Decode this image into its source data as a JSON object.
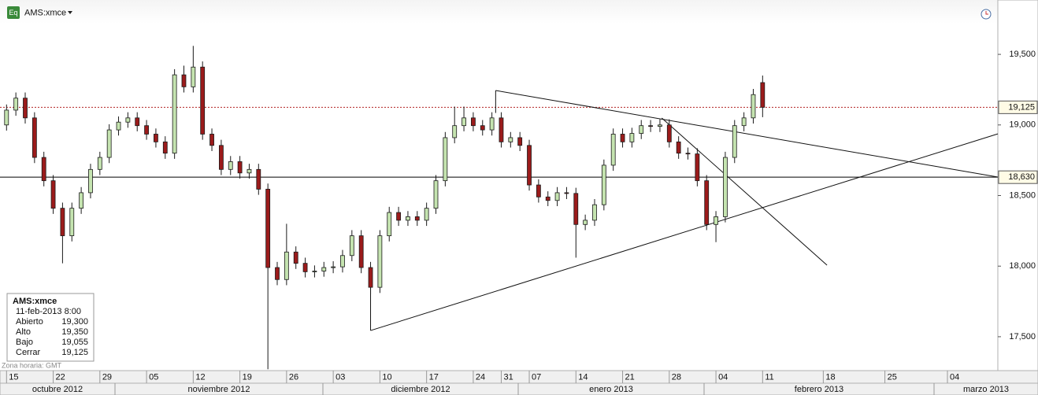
{
  "chart_data": {
    "type": "candlestick",
    "title": "AMS:xmce",
    "icon_label": "Eq",
    "timezone_note": "Zona horaria: GMT",
    "up_color": "#c5e4b0",
    "down_color": "#9b1b1b",
    "outline_color": "#1a1a1a",
    "x": [
      0,
      1,
      2,
      3,
      4,
      5,
      6,
      7,
      8,
      9,
      10,
      11,
      12,
      13,
      14,
      15,
      16,
      17,
      18,
      19,
      20,
      21,
      22,
      23,
      24,
      25,
      26,
      27,
      28,
      29,
      30,
      31,
      32,
      33,
      34,
      35,
      36,
      37,
      38,
      39,
      40,
      41,
      42,
      43,
      44,
      45,
      46,
      47,
      48,
      49,
      50,
      51,
      52,
      53,
      54,
      55,
      56,
      57,
      58,
      59,
      60,
      61,
      62,
      63,
      64,
      65,
      66,
      67,
      68,
      69,
      70,
      71,
      72,
      73,
      74,
      75,
      76,
      77,
      78,
      79,
      80,
      81
    ],
    "open": [
      19000,
      19105,
      19190,
      19050,
      18770,
      18605,
      18410,
      18215,
      18410,
      18520,
      18685,
      18770,
      18965,
      19020,
      19050,
      18995,
      18935,
      18880,
      18800,
      19355,
      19270,
      19410,
      18935,
      18855,
      18685,
      18740,
      18660,
      18685,
      18545,
      17990,
      17905,
      18100,
      18020,
      17960,
      17965,
      17990,
      17995,
      18075,
      18215,
      17990,
      17850,
      18215,
      18380,
      18325,
      18350,
      18325,
      18410,
      18605,
      18910,
      18995,
      19050,
      18995,
      18965,
      19050,
      18880,
      18910,
      18855,
      18575,
      18490,
      18465,
      18520,
      18515,
      18295,
      18325,
      18435,
      18715,
      18935,
      18880,
      18940,
      18995,
      18990,
      19000,
      18880,
      18800,
      18795,
      18605,
      18295,
      18350,
      18770,
      18995,
      19050,
      19300
    ],
    "high": [
      19145,
      19230,
      19230,
      19090,
      18810,
      18645,
      18450,
      18450,
      18560,
      18725,
      18810,
      19005,
      19060,
      19090,
      19090,
      19035,
      18975,
      18920,
      19395,
      19420,
      19560,
      19450,
      18975,
      18895,
      18780,
      18780,
      18725,
      18725,
      18585,
      18030,
      18300,
      18140,
      18060,
      18005,
      18030,
      18035,
      18115,
      18255,
      18255,
      18030,
      18255,
      18420,
      18420,
      18390,
      18390,
      18450,
      18645,
      18950,
      19130,
      19130,
      19090,
      19035,
      19090,
      19090,
      18950,
      18950,
      18895,
      18615,
      18530,
      18560,
      18560,
      18555,
      18365,
      18475,
      18755,
      18975,
      18975,
      18980,
      19035,
      19035,
      19040,
      19040,
      18920,
      18840,
      18835,
      18645,
      18390,
      18810,
      19035,
      19090,
      19255,
      19350
    ],
    "low": [
      18960,
      19065,
      19010,
      18730,
      18565,
      18370,
      18020,
      18175,
      18370,
      18480,
      18645,
      18730,
      18925,
      18980,
      18955,
      18895,
      18840,
      18760,
      18760,
      19230,
      19230,
      18895,
      18815,
      18645,
      18645,
      18620,
      18620,
      18505,
      17270,
      17865,
      17865,
      17980,
      17920,
      17920,
      17925,
      17950,
      17955,
      18035,
      17950,
      17800,
      17810,
      18175,
      18285,
      18285,
      18285,
      18285,
      18370,
      18565,
      18870,
      18955,
      18955,
      18925,
      18925,
      18840,
      18840,
      18815,
      18535,
      18450,
      18425,
      18425,
      18475,
      18060,
      18255,
      18285,
      18395,
      18675,
      18840,
      18840,
      18900,
      18950,
      18950,
      18840,
      18760,
      18755,
      18565,
      18255,
      18170,
      18310,
      18730,
      18955,
      19010,
      19055
    ],
    "close": [
      19105,
      19190,
      19050,
      18770,
      18605,
      18410,
      18215,
      18410,
      18520,
      18685,
      18770,
      18965,
      19020,
      19050,
      18995,
      18935,
      18880,
      18800,
      19355,
      19270,
      19410,
      18935,
      18855,
      18685,
      18740,
      18660,
      18685,
      18545,
      17990,
      17905,
      18100,
      18020,
      17960,
      17965,
      17990,
      17995,
      18075,
      18215,
      17990,
      17850,
      18215,
      18380,
      18325,
      18350,
      18325,
      18410,
      18605,
      18910,
      18995,
      19050,
      18995,
      18965,
      19050,
      18880,
      18910,
      18855,
      18575,
      18490,
      18465,
      18520,
      18515,
      18295,
      18325,
      18435,
      18715,
      18935,
      18880,
      18940,
      18995,
      18990,
      19000,
      18880,
      18800,
      18795,
      18605,
      18295,
      18350,
      18770,
      18995,
      19050,
      19215,
      19125
    ],
    "xlim": [
      -0.7,
      106.2
    ],
    "ylim": [
      17260,
      19885
    ],
    "yticks": [
      {
        "value": 17500,
        "label": "17,500"
      },
      {
        "value": 18000,
        "label": "18,000"
      },
      {
        "value": 18500,
        "label": "18,500"
      },
      {
        "value": 19000,
        "label": "19,000"
      },
      {
        "value": 19500,
        "label": "19,500"
      }
    ],
    "xticks": [
      {
        "value": 0,
        "label": "15"
      },
      {
        "value": 5,
        "label": "22"
      },
      {
        "value": 10,
        "label": "29"
      },
      {
        "value": 15,
        "label": "05"
      },
      {
        "value": 20,
        "label": "12"
      },
      {
        "value": 25,
        "label": "19"
      },
      {
        "value": 30,
        "label": "26"
      },
      {
        "value": 35,
        "label": "03"
      },
      {
        "value": 40,
        "label": "10"
      },
      {
        "value": 45,
        "label": "17"
      },
      {
        "value": 50,
        "label": "24"
      },
      {
        "value": 53,
        "label": "31"
      },
      {
        "value": 56,
        "label": "07"
      },
      {
        "value": 61,
        "label": "14"
      },
      {
        "value": 66,
        "label": "21"
      },
      {
        "value": 71,
        "label": "28"
      },
      {
        "value": 76,
        "label": "04"
      },
      {
        "value": 81,
        "label": "11"
      },
      {
        "value": 87.5,
        "label": "18"
      },
      {
        "value": 94.1,
        "label": "25"
      },
      {
        "value": 100.8,
        "label": "04"
      }
    ],
    "months": [
      "octubre 2012",
      "noviembre 2012",
      "diciembre 2012",
      "enero 2013",
      "febrero 2013",
      "marzo 2013"
    ],
    "price_markers": [
      {
        "value": 19125,
        "label": "19,125",
        "color": "#b22222",
        "style": "dotted"
      },
      {
        "value": 18630,
        "label": "18,630",
        "color": "#000000",
        "style": "solid"
      }
    ],
    "trendlines": [
      [
        52.4,
        19244,
        106.2,
        18631
      ],
      [
        52.4,
        19244,
        52.4,
        19085
      ],
      [
        39.0,
        17544,
        106.2,
        18937
      ],
      [
        39.0,
        17544,
        39.0,
        17850
      ],
      [
        70.2,
        19049,
        87.9,
        18007
      ]
    ],
    "info_box": {
      "title": "AMS:xmce",
      "date": "11-feb-2013 8:00",
      "rows": [
        [
          "Abierto",
          "19,300"
        ],
        [
          "Alto",
          "19,350"
        ],
        [
          "Bajo",
          "19,055"
        ],
        [
          "Cerrar",
          "19,125"
        ]
      ]
    }
  }
}
